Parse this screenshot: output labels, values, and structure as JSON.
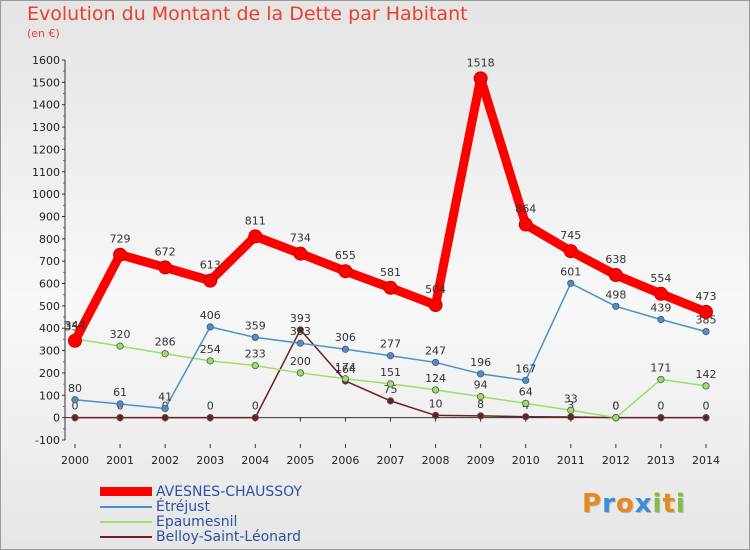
{
  "title": "Evolution du Montant de la Dette par Habitant",
  "unit_label": "(en €)",
  "logo": {
    "text": "Proxiti",
    "colors": [
      "#e58a1f",
      "#3b8ed6",
      "#e58a1f",
      "#3b8ed6",
      "#7cc242",
      "#e58a1f",
      "#7cc242"
    ]
  },
  "chart_data": {
    "type": "line",
    "x": [
      "2000",
      "2001",
      "2002",
      "2003",
      "2004",
      "2005",
      "2006",
      "2007",
      "2008",
      "2009",
      "2010",
      "2011",
      "2012",
      "2013",
      "2014"
    ],
    "ylim": [
      -100,
      1600
    ],
    "yticks": [
      -100,
      0,
      100,
      200,
      300,
      400,
      500,
      600,
      700,
      800,
      900,
      1000,
      1100,
      1200,
      1300,
      1400,
      1500,
      1600
    ],
    "grid": false,
    "legend_placement": "bottom-left",
    "series": [
      {
        "name": "AVESNES-CHAUSSOY",
        "color": "#ff0000",
        "values": [
          344,
          729,
          672,
          613,
          811,
          734,
          655,
          581,
          504,
          1518,
          864,
          745,
          638,
          554,
          473
        ],
        "labels": [
          "344",
          "729",
          "672",
          "613",
          "811",
          "734",
          "655",
          "581",
          "504",
          "1518",
          "864",
          "745",
          "638",
          "554",
          "473"
        ]
      },
      {
        "name": "Étréjust",
        "color": "#4a90d0",
        "values": [
          80,
          61,
          41,
          406,
          359,
          333,
          306,
          277,
          247,
          196,
          167,
          601,
          498,
          439,
          385
        ],
        "labels": [
          "80",
          "61",
          "41",
          "406",
          "359",
          "333",
          "306",
          "277",
          "247",
          "196",
          "167",
          "601",
          "498",
          "439",
          "385"
        ]
      },
      {
        "name": "Epaumesnil",
        "color": "#99e066",
        "values": [
          353,
          320,
          286,
          254,
          233,
          200,
          174,
          151,
          124,
          94,
          64,
          33,
          0,
          171,
          142
        ],
        "labels": [
          "353",
          "320",
          "286",
          "254",
          "233",
          "200",
          "174",
          "151",
          "124",
          "94",
          "64",
          "33",
          "0",
          "171",
          "142"
        ]
      },
      {
        "name": "Belloy-Saint-Léonard",
        "color": "#6b1f1f",
        "values": [
          0,
          0,
          0,
          0,
          0,
          393,
          164,
          75,
          10,
          8,
          4,
          3,
          0,
          0,
          0
        ],
        "labels": [
          "0",
          "0",
          "0",
          "0",
          "0",
          "393",
          "164",
          "75",
          "10",
          "8",
          "4",
          "3",
          "0",
          "0",
          "0"
        ]
      }
    ]
  }
}
